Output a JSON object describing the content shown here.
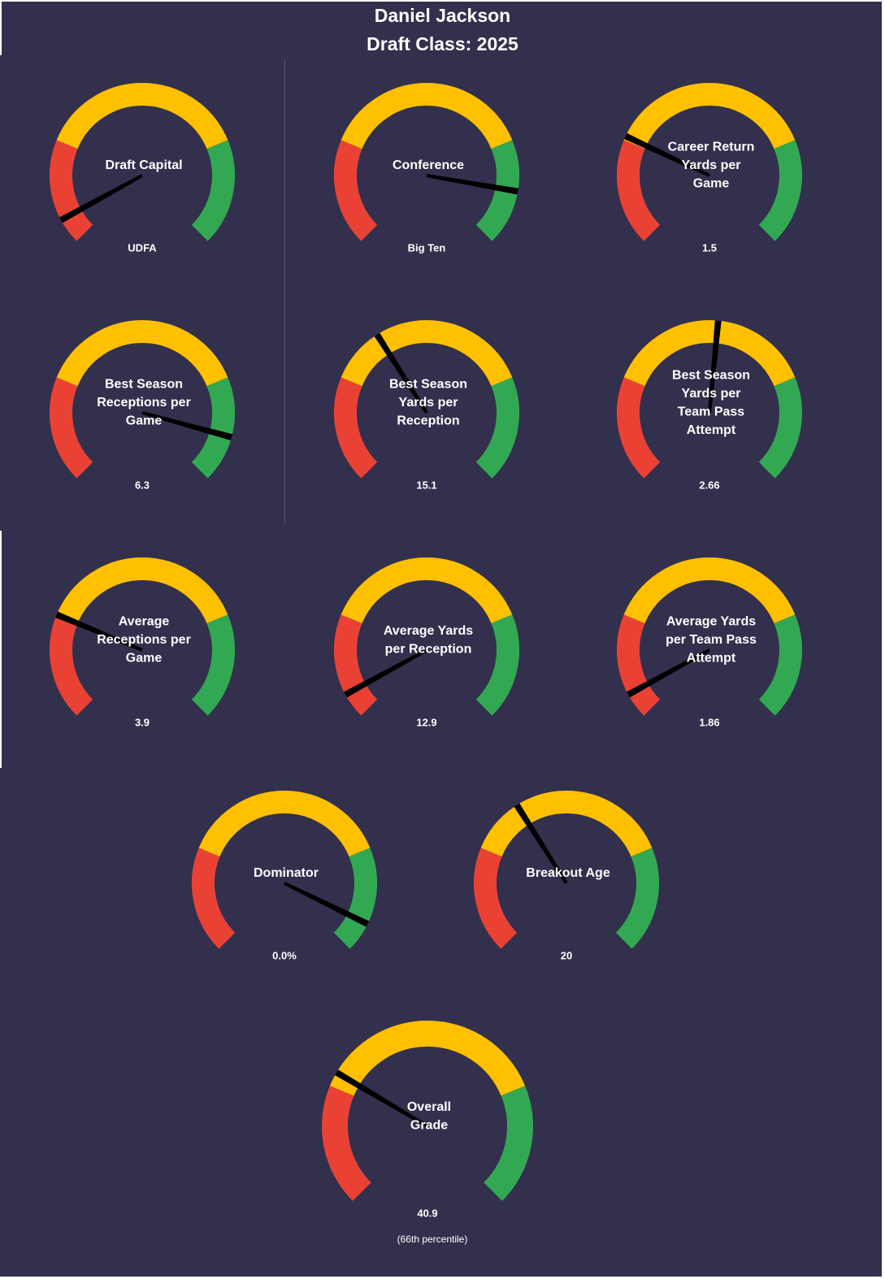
{
  "header": {
    "player_name": "Daniel Jackson",
    "draft_class": "Draft Class: 2025"
  },
  "colors": {
    "background": "#32304d",
    "low": "#e94235",
    "mid": "#ffc000",
    "high": "#33a853",
    "needle": "#000000",
    "text": "#ffffff"
  },
  "chart_data": [
    {
      "type": "gauge",
      "title": [
        "Draft Capital"
      ],
      "value_label": "UDFA",
      "needle_fraction": 0.06
    },
    {
      "type": "gauge",
      "title": [
        "Conference"
      ],
      "value_label": "Big Ten",
      "needle_fraction": 0.87
    },
    {
      "type": "gauge",
      "title": [
        "Career Return",
        "Yards per",
        "Game"
      ],
      "value_label": "1.5",
      "needle_fraction": 0.26
    },
    {
      "type": "gauge",
      "title": [
        "Best Season",
        "Receptions per",
        "Game"
      ],
      "value_label": "6.3",
      "needle_fraction": 0.89
    },
    {
      "type": "gauge",
      "title": [
        "Best Season",
        "Yards per",
        "Reception"
      ],
      "value_label": "15.1",
      "needle_fraction": 0.38
    },
    {
      "type": "gauge",
      "title": [
        "Best Season",
        "Yards per",
        "Team Pass",
        "Attempt"
      ],
      "value_label": "2.66",
      "needle_fraction": 0.52
    },
    {
      "type": "gauge",
      "title": [
        "Average",
        "Receptions per",
        "Game"
      ],
      "value_label": "3.9",
      "needle_fraction": 0.25
    },
    {
      "type": "gauge",
      "title": [
        "Average Yards",
        "per Reception"
      ],
      "value_label": "12.9",
      "needle_fraction": 0.06
    },
    {
      "type": "gauge",
      "title": [
        "Average Yards",
        "per Team Pass",
        "Attempt"
      ],
      "value_label": "1.86",
      "needle_fraction": 0.06
    },
    {
      "type": "gauge",
      "title": [
        "Dominator"
      ],
      "value_label": "0.0%",
      "needle_fraction": 0.93
    },
    {
      "type": "gauge",
      "title": [
        "Breakout Age"
      ],
      "value_label": "20",
      "needle_fraction": 0.38
    },
    {
      "type": "gauge",
      "title": [
        "Overall",
        "Grade"
      ],
      "value_label": "40.9",
      "subtitle": "(66th  percentile)",
      "needle_fraction": 0.28
    }
  ]
}
